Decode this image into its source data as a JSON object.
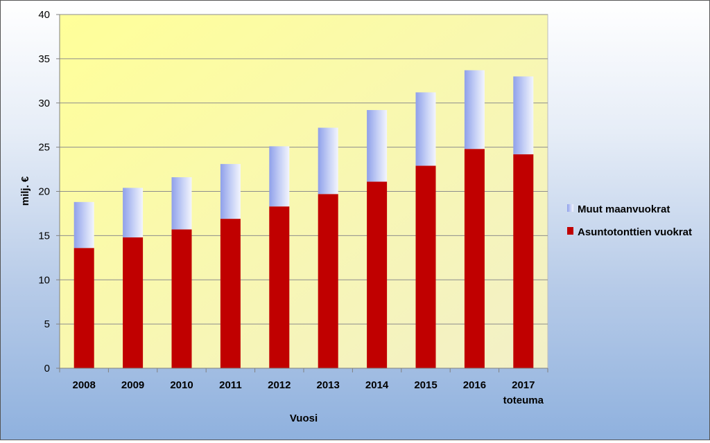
{
  "chart_data": {
    "type": "bar",
    "stacked": true,
    "categories": [
      "2008",
      "2009",
      "2010",
      "2011",
      "2012",
      "2013",
      "2014",
      "2015",
      "2016",
      "2017\ntoteuma"
    ],
    "series": [
      {
        "name": "Asuntotonttien vuokrat",
        "color": "#c00000",
        "values": [
          13.6,
          14.8,
          15.7,
          16.9,
          18.3,
          19.7,
          21.1,
          22.9,
          24.8,
          24.2
        ]
      },
      {
        "name": "Muut maanvuokrat",
        "color": "#a9b9f0",
        "values": [
          5.2,
          5.6,
          5.9,
          6.2,
          6.8,
          7.5,
          8.1,
          8.3,
          8.9,
          8.8
        ]
      }
    ],
    "xlabel": "Vuosi",
    "ylabel": "milj. €",
    "ylim": [
      0,
      40
    ],
    "yticks": [
      0,
      5,
      10,
      15,
      20,
      25,
      30,
      35,
      40
    ],
    "grid": true,
    "legend_position": "right",
    "legend_order": [
      "Muut maanvuokrat",
      "Asuntotonttien vuokrat"
    ],
    "plot_background": [
      "#ffff99",
      "#f2f0c8"
    ]
  }
}
